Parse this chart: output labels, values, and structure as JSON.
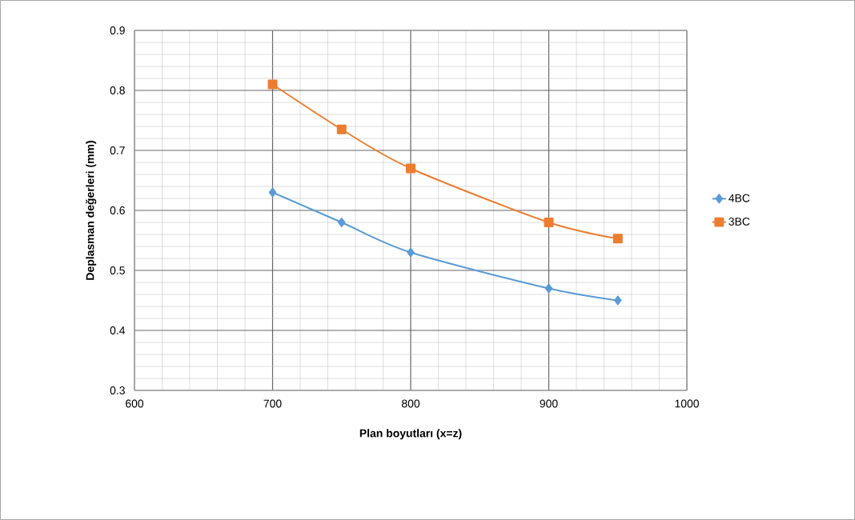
{
  "chart_data": {
    "type": "line",
    "xlabel": "Plan boyutları (x=z)",
    "ylabel": "Deplasman değerleri (mm)",
    "x": [
      700,
      750,
      800,
      900,
      950
    ],
    "series": [
      {
        "name": "4BC",
        "color": "#5b9bd5",
        "marker": "diamond",
        "values": [
          0.63,
          0.58,
          0.53,
          0.47,
          0.45
        ]
      },
      {
        "name": "3BC",
        "color": "#ed7d31",
        "marker": "square",
        "values": [
          0.81,
          0.735,
          0.67,
          0.58,
          0.553
        ]
      }
    ],
    "xlim": [
      600,
      1000
    ],
    "xticks": [
      600,
      700,
      800,
      900,
      1000
    ],
    "ylim": [
      0.3,
      0.9
    ],
    "yticks": [
      0.3,
      0.4,
      0.5,
      0.6,
      0.7,
      0.8,
      0.9
    ],
    "grid": true,
    "legend": "right",
    "line_style": "solid"
  }
}
